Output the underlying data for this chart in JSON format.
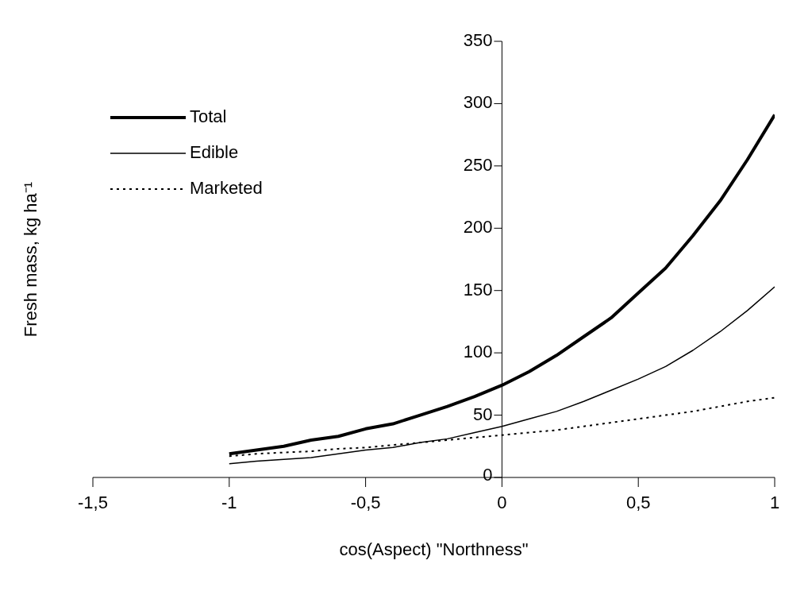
{
  "chart_data": {
    "type": "line",
    "xlabel": "cos(Aspect) \"Northness\"",
    "ylabel": "Fresh mass, kg ha⁻¹",
    "x": [
      -1,
      -0.9,
      -0.8,
      -0.7,
      -0.6,
      -0.5,
      -0.4,
      -0.3,
      -0.2,
      -0.1,
      0,
      0.1,
      0.2,
      0.3,
      0.4,
      0.5,
      0.6,
      0.7,
      0.8,
      0.9,
      1
    ],
    "series": [
      {
        "name": "Total",
        "color": "#000000",
        "line_style": "solid",
        "values": [
          19,
          22,
          25,
          30,
          33,
          39,
          43,
          50,
          57,
          65,
          74,
          85,
          98,
          113,
          128,
          148,
          168,
          194,
          222,
          255,
          291
        ]
      },
      {
        "name": "Edible",
        "color": "#000000",
        "line_style": "solid",
        "values": [
          11,
          13,
          14.5,
          16,
          19,
          22,
          24,
          28,
          31,
          36,
          41,
          47,
          53,
          61,
          70,
          79,
          89,
          102,
          117,
          134,
          153
        ]
      },
      {
        "name": "Marketed",
        "color": "#000000",
        "line_style": "dotted",
        "values": [
          17,
          19,
          20,
          21,
          23,
          24,
          26,
          28,
          30,
          32,
          34,
          36,
          38,
          41,
          44,
          47,
          50,
          53,
          57,
          61,
          64
        ]
      }
    ],
    "xlim": [
      -1.5,
      1
    ],
    "xticks": [
      {
        "value": -1.5,
        "label": "-1,5"
      },
      -1,
      {
        "value": -0.5,
        "label": "-0,5"
      },
      0,
      {
        "value": 0.5,
        "label": "0,5"
      },
      1
    ],
    "ylim": [
      0,
      350
    ],
    "yticks": [
      0,
      50,
      100,
      150,
      200,
      250,
      300,
      350
    ],
    "grid": false,
    "legend": "top left",
    "marker": "none"
  }
}
